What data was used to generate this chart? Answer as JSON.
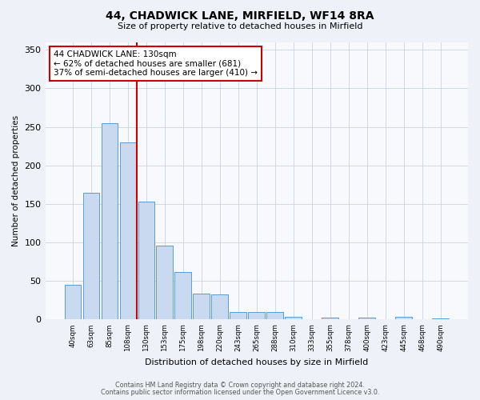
{
  "title": "44, CHADWICK LANE, MIRFIELD, WF14 8RA",
  "subtitle": "Size of property relative to detached houses in Mirfield",
  "xlabel": "Distribution of detached houses by size in Mirfield",
  "ylabel": "Number of detached properties",
  "bin_labels": [
    "40sqm",
    "63sqm",
    "85sqm",
    "108sqm",
    "130sqm",
    "153sqm",
    "175sqm",
    "198sqm",
    "220sqm",
    "243sqm",
    "265sqm",
    "288sqm",
    "310sqm",
    "333sqm",
    "355sqm",
    "378sqm",
    "400sqm",
    "423sqm",
    "445sqm",
    "468sqm",
    "490sqm"
  ],
  "bar_heights": [
    45,
    164,
    255,
    230,
    153,
    96,
    62,
    34,
    33,
    10,
    10,
    10,
    4,
    0,
    3,
    0,
    3,
    0,
    4,
    0,
    1
  ],
  "bar_color": "#c9d9f0",
  "bar_edge_color": "#5b9bd5",
  "marker_index": 4,
  "marker_color": "#cc0000",
  "annotation_text": "44 CHADWICK LANE: 130sqm\n← 62% of detached houses are smaller (681)\n37% of semi-detached houses are larger (410) →",
  "annotation_box_color": "#cc0000",
  "ylim": [
    0,
    360
  ],
  "yticks": [
    0,
    50,
    100,
    150,
    200,
    250,
    300,
    350
  ],
  "footer1": "Contains HM Land Registry data © Crown copyright and database right 2024.",
  "footer2": "Contains public sector information licensed under the Open Government Licence v3.0.",
  "bg_color": "#eef2f8",
  "plot_bg_color": "#f7f9fd",
  "grid_color": "#cdd8ea"
}
